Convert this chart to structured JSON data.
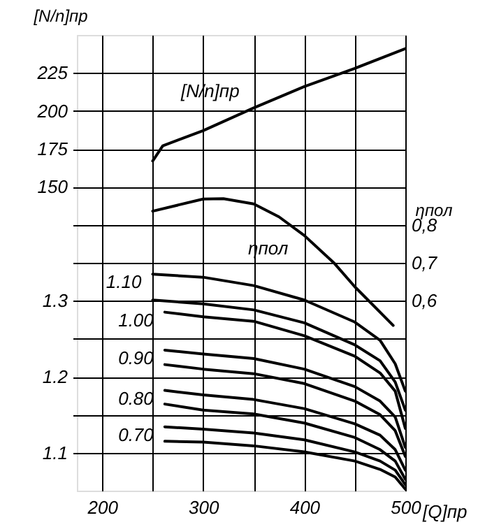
{
  "chart_data": {
    "type": "line",
    "xlabel": "[Q]пр",
    "ylabel": "[N/n]пр",
    "y2label": "ηпол",
    "xlim": [
      175,
      500
    ],
    "xticks": [
      200,
      {
        "value": 250,
        "label": null
      },
      300,
      {
        "value": 350,
        "label": null
      },
      400,
      {
        "value": 450,
        "label": null
      },
      500
    ],
    "ylim": [
      -50,
      250
    ],
    "yticks": [
      {
        "value": 0,
        "label": null
      },
      {
        "value": 25,
        "label": null
      },
      {
        "value": 75,
        "label": null
      },
      {
        "value": 100,
        "label": null
      },
      {
        "value": 125,
        "label": null
      },
      150,
      175,
      200,
      225
    ],
    "y2lim": [
      0.1,
      1.3
    ],
    "y2ticks": [
      {
        "value": 0.6,
        "label": "0,6"
      },
      {
        "value": 0.7,
        "label": "0,7"
      },
      {
        "value": 0.8,
        "label": "0,8"
      }
    ],
    "y3lim": [
      1.05,
      1.65
    ],
    "y3ticks": [
      1.1,
      1.2,
      {
        "value": 1.25,
        "label": null
      },
      1.3
    ],
    "grid": true,
    "marker": "none",
    "line_style": "solid",
    "series": [
      {
        "name": "[N/n]пр",
        "color": "#000000",
        "x": [
          250,
          260,
          300,
          350,
          400,
          450,
          500
        ],
        "values": [
          167,
          177,
          187,
          202,
          216,
          228,
          241
        ]
      },
      {
        "name": "ηпол",
        "axis": "y2",
        "color": "#000000",
        "x": [
          250,
          300,
          320,
          350,
          375,
          400,
          430,
          450,
          488
        ],
        "values": [
          0.836,
          0.868,
          0.869,
          0.855,
          0.821,
          0.772,
          0.698,
          0.637,
          0.535
        ]
      },
      {
        "name": "1.10",
        "axis": "y3",
        "color": "#000000",
        "x": [
          250,
          300,
          350,
          400,
          450,
          475,
          490,
          500
        ],
        "values": [
          1.335,
          1.331,
          1.32,
          1.301,
          1.272,
          1.248,
          1.217,
          1.181
        ]
      },
      {
        "axis": "y3",
        "color": "#000000",
        "x": [
          250,
          300,
          350,
          400,
          450,
          475,
          490,
          500
        ],
        "values": [
          1.301,
          1.296,
          1.288,
          1.271,
          1.242,
          1.221,
          1.193,
          1.156
        ]
      },
      {
        "name": "1.00",
        "axis": "y3",
        "color": "#000000",
        "x": [
          262,
          300,
          350,
          400,
          450,
          475,
          490,
          500
        ],
        "values": [
          1.285,
          1.279,
          1.273,
          1.254,
          1.227,
          1.205,
          1.181,
          1.132
        ]
      },
      {
        "name": "0.90",
        "axis": "y3",
        "color": "#000000",
        "x": [
          262,
          300,
          350,
          400,
          450,
          475,
          490,
          500
        ],
        "values": [
          1.235,
          1.23,
          1.224,
          1.21,
          1.187,
          1.168,
          1.147,
          1.107
        ]
      },
      {
        "axis": "y3",
        "color": "#000000",
        "x": [
          262,
          300,
          350,
          400,
          450,
          475,
          490,
          500
        ],
        "values": [
          1.216,
          1.21,
          1.204,
          1.191,
          1.168,
          1.15,
          1.129,
          1.095
        ]
      },
      {
        "name": "0.80",
        "axis": "y3",
        "color": "#000000",
        "x": [
          262,
          300,
          350,
          400,
          450,
          475,
          490,
          500
        ],
        "values": [
          1.182,
          1.176,
          1.17,
          1.158,
          1.138,
          1.123,
          1.104,
          1.077
        ]
      },
      {
        "axis": "y3",
        "color": "#000000",
        "x": [
          262,
          300,
          350,
          400,
          450,
          475,
          490,
          500
        ],
        "values": [
          1.164,
          1.156,
          1.151,
          1.139,
          1.12,
          1.104,
          1.089,
          1.065
        ]
      },
      {
        "name": "0.70",
        "axis": "y3",
        "color": "#000000",
        "x": [
          262,
          300,
          350,
          400,
          450,
          475,
          490,
          500
        ],
        "values": [
          1.134,
          1.131,
          1.126,
          1.117,
          1.101,
          1.089,
          1.077,
          1.058
        ]
      },
      {
        "axis": "y3",
        "color": "#000000",
        "x": [
          262,
          300,
          350,
          400,
          450,
          475,
          490,
          500
        ],
        "values": [
          1.115,
          1.114,
          1.109,
          1.101,
          1.089,
          1.078,
          1.068,
          1.052
        ]
      }
    ]
  }
}
